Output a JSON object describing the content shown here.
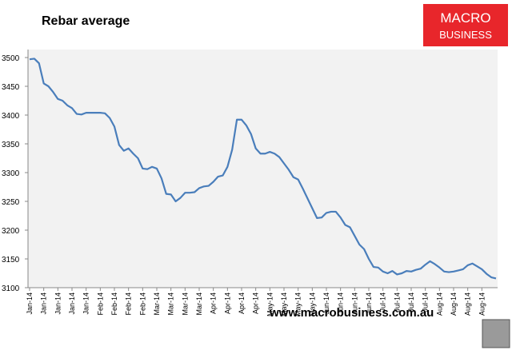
{
  "chart_data": {
    "type": "line",
    "title": "Rebar average",
    "categories": [
      "Jan-14",
      null,
      null,
      "Jan-14",
      null,
      null,
      "Jan-14",
      null,
      null,
      "Jan-14",
      null,
      null,
      "Jan-14",
      null,
      null,
      "Feb-14",
      null,
      null,
      "Feb-14",
      null,
      null,
      "Feb-14",
      null,
      null,
      "Feb-14",
      null,
      null,
      "Mar-14",
      null,
      null,
      "Mar-14",
      null,
      null,
      "Mar-14",
      null,
      null,
      "Mar-14",
      null,
      null,
      "Apr-14",
      null,
      null,
      "Apr-14",
      null,
      null,
      "Apr-14",
      null,
      null,
      "Apr-14",
      null,
      null,
      "May-14",
      null,
      null,
      "May-14",
      null,
      null,
      "May-14",
      null,
      null,
      "May-14",
      null,
      null,
      "Jun-14",
      null,
      null,
      "Jun-14",
      null,
      null,
      "Jun-14",
      null,
      null,
      "Jun-14",
      null,
      null,
      "Jul-14",
      null,
      null,
      "Jul-14",
      null,
      null,
      "Jul-14",
      null,
      null,
      "Jul-14",
      null,
      null,
      "Aug-14",
      null,
      null,
      "Aug-14",
      null,
      null,
      "Aug-14",
      null,
      null,
      "Aug-14",
      null,
      null,
      null
    ],
    "values": [
      3497,
      3498,
      3490,
      3455,
      3450,
      3440,
      3428,
      3425,
      3417,
      3412,
      3402,
      3401,
      3404,
      3404,
      3404,
      3404,
      3403,
      3395,
      3380,
      3348,
      3338,
      3342,
      3333,
      3325,
      3307,
      3306,
      3310,
      3307,
      3290,
      3263,
      3262,
      3250,
      3256,
      3265,
      3265,
      3266,
      3273,
      3276,
      3277,
      3284,
      3293,
      3295,
      3310,
      3340,
      3392,
      3392,
      3382,
      3367,
      3342,
      3333,
      3333,
      3336,
      3333,
      3327,
      3316,
      3305,
      3292,
      3288,
      3272,
      3255,
      3238,
      3221,
      3222,
      3230,
      3232,
      3232,
      3222,
      3209,
      3205,
      3190,
      3175,
      3167,
      3150,
      3136,
      3135,
      3128,
      3125,
      3129,
      3123,
      3125,
      3129,
      3128,
      3131,
      3133,
      3140,
      3146,
      3141,
      3135,
      3128,
      3127,
      3128,
      3130,
      3132,
      3139,
      3142,
      3137,
      3132,
      3124,
      3118,
      3116
    ],
    "color": "#4a7ebb",
    "ylim": [
      3100,
      3500
    ],
    "yticks": [
      3100,
      3150,
      3200,
      3250,
      3300,
      3350,
      3400,
      3450,
      3500
    ]
  },
  "logo": {
    "line1": "MACRO",
    "line2": "BUSINESS"
  },
  "footer": "www.macrobusiness.com.au"
}
